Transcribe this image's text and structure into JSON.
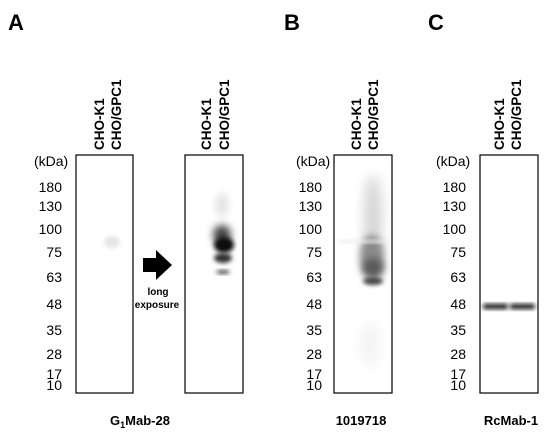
{
  "panels": [
    {
      "letter": "A",
      "caption_main": "G",
      "caption_sub": "1",
      "caption_rest": "Mab-28"
    },
    {
      "letter": "B",
      "caption": "1019718"
    },
    {
      "letter": "C",
      "caption": "RcMab-1"
    }
  ],
  "lanes": [
    "CHO-K1",
    "CHO/GPC1"
  ],
  "unit_label": "(kDa)",
  "markers": [
    "180",
    "130",
    "100",
    "75",
    "63",
    "48",
    "35",
    "28",
    "17",
    "10"
  ],
  "arrow": {
    "line1": "long",
    "line2": "exposure",
    "icon": "right-arrow-icon"
  },
  "colors": {
    "band": "#111111",
    "frame": "#000000",
    "background": "#ffffff"
  }
}
